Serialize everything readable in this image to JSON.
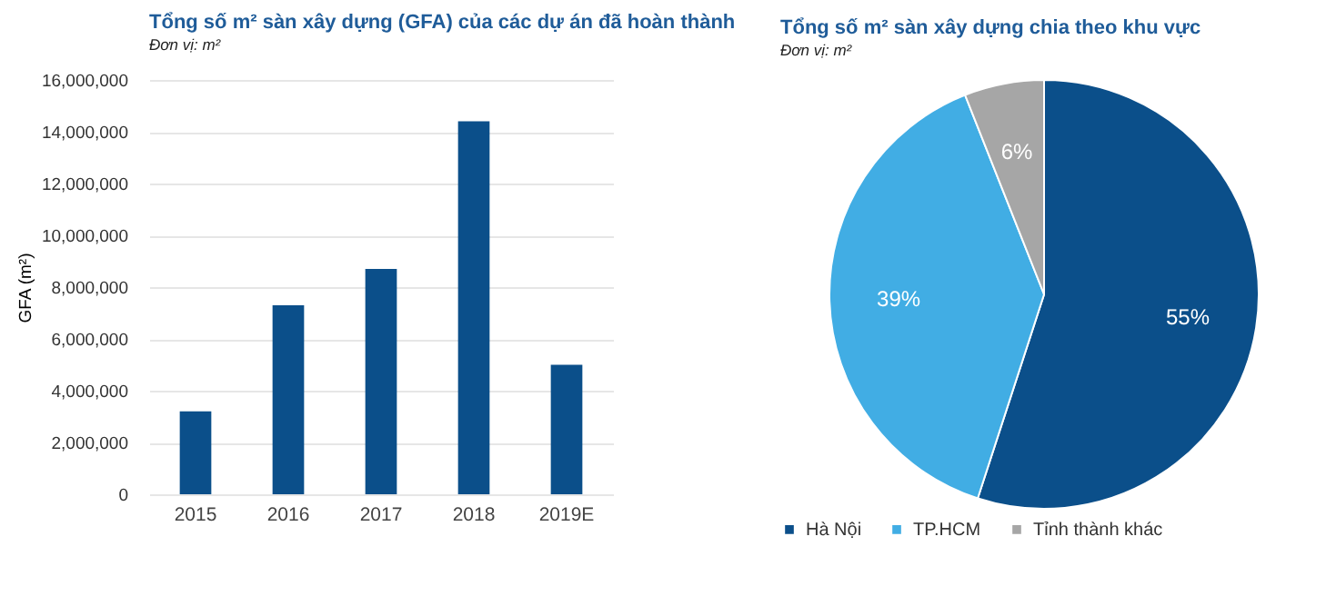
{
  "chart_data": [
    {
      "type": "bar",
      "title": "Tổng số m² sàn xây dựng (GFA) của các dự án đã hoàn thành",
      "subtitle": "Đơn vị: m²",
      "ylabel": "GFA (m²)",
      "categories": [
        "2015",
        "2016",
        "2017",
        "2018",
        "2019E"
      ],
      "values": [
        3200000,
        7300000,
        8700000,
        14400000,
        5000000
      ],
      "color": "#0b4f8a",
      "ylim": [
        0,
        16000000
      ],
      "yticks": [
        0,
        {
          "value": 2000000,
          "label": "2,000,000"
        },
        {
          "value": 4000000,
          "label": "4,000,000"
        },
        {
          "value": 6000000,
          "label": "6,000,000"
        },
        {
          "value": 8000000,
          "label": "8,000,000"
        },
        {
          "value": 10000000,
          "label": "10,000,000"
        },
        {
          "value": 12000000,
          "label": "12,000,000"
        },
        {
          "value": 14000000,
          "label": "14,000,000"
        },
        {
          "value": 16000000,
          "label": "16,000,000"
        }
      ],
      "grid": "y"
    },
    {
      "type": "pie",
      "title": "Tổng số m² sàn xây dựng chia theo khu vực",
      "subtitle": "Đơn vị: m²",
      "categories": [
        "Hà Nội",
        "TP.HCM",
        "Tỉnh thành khác"
      ],
      "values": [
        55,
        39,
        6
      ],
      "colors": [
        "#0b4f8a",
        "#41ade4",
        "#a6a6a6"
      ],
      "value_labels": [
        "55%",
        "39%",
        "6%"
      ],
      "legend": "bottom"
    }
  ]
}
